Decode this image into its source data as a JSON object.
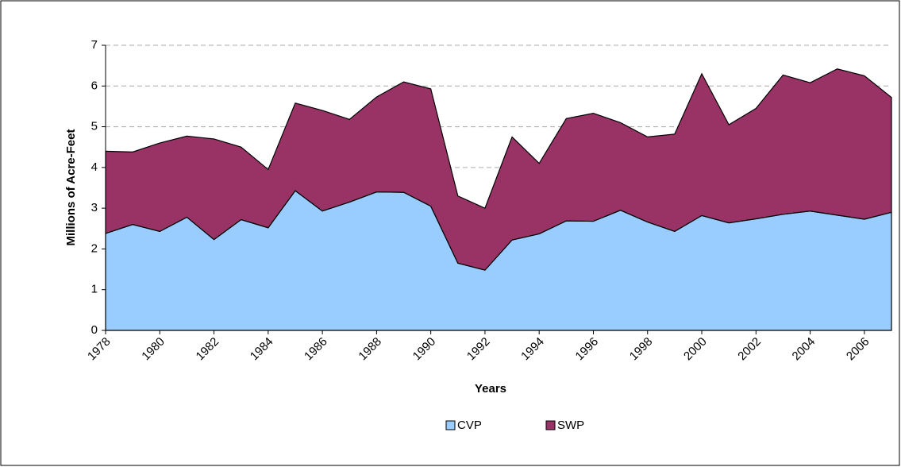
{
  "chart_data": {
    "type": "stacked_area",
    "x_label": "Years",
    "y_label": "Millions of Acre-Feet",
    "x": [
      1978,
      1979,
      1980,
      1981,
      1982,
      1983,
      1984,
      1985,
      1986,
      1987,
      1988,
      1989,
      1990,
      1991,
      1992,
      1993,
      1994,
      1995,
      1996,
      1997,
      1998,
      1999,
      2000,
      2001,
      2002,
      2003,
      2004,
      2005,
      2006,
      2007
    ],
    "xlim": [
      1978,
      2007
    ],
    "xticks": [
      1978,
      1980,
      1982,
      1984,
      1986,
      1988,
      1990,
      1992,
      1994,
      1996,
      1998,
      2000,
      2002,
      2004,
      2006
    ],
    "ylim": [
      0,
      7
    ],
    "yticks": [
      0,
      1,
      2,
      3,
      4,
      5,
      6,
      7
    ],
    "grid": true,
    "legend": "bottom",
    "series": [
      {
        "name": "CVP",
        "color": "#99ccff",
        "values": [
          2.38,
          2.6,
          2.43,
          2.78,
          2.23,
          2.72,
          2.52,
          3.43,
          2.93,
          3.15,
          3.4,
          3.39,
          3.05,
          1.65,
          1.48,
          2.22,
          2.37,
          2.69,
          2.68,
          2.95,
          2.66,
          2.43,
          2.82,
          2.64,
          2.74,
          2.85,
          2.93,
          2.83,
          2.73,
          2.9
        ]
      },
      {
        "name": "SWP",
        "color": "#993366",
        "values": [
          2.02,
          1.78,
          2.17,
          1.99,
          2.47,
          1.78,
          1.43,
          2.15,
          2.47,
          2.03,
          2.33,
          2.71,
          2.88,
          1.65,
          1.52,
          2.53,
          1.73,
          2.51,
          2.65,
          2.15,
          2.09,
          2.39,
          3.48,
          2.41,
          2.71,
          3.42,
          3.15,
          3.59,
          3.52,
          2.82
        ]
      }
    ]
  }
}
